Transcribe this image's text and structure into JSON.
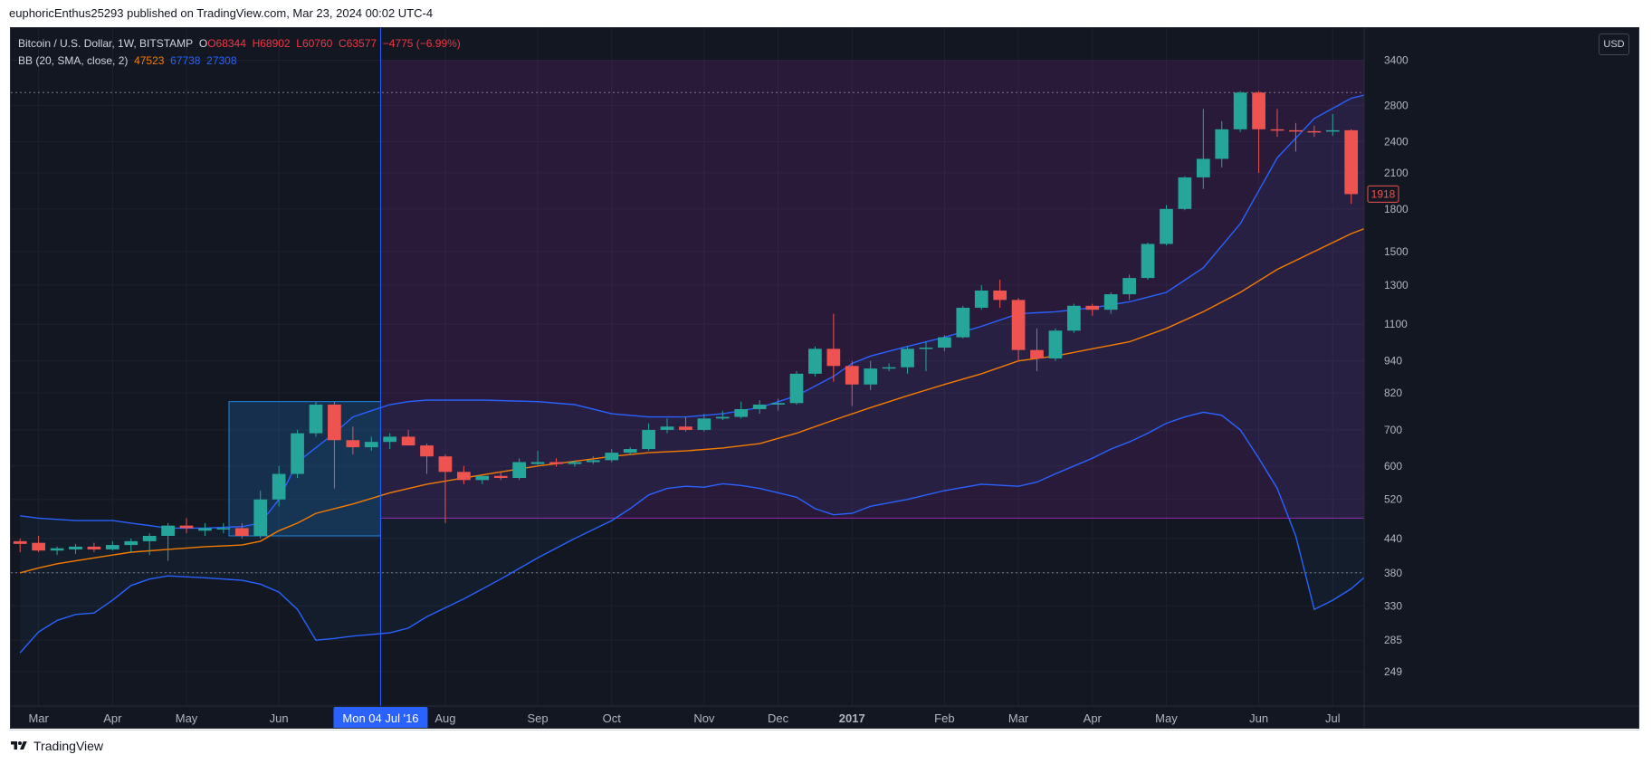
{
  "header": {
    "published_line": "euphoricEnthus25293 published on TradingView.com, Mar 23, 2024 00:02 UTC-4"
  },
  "footer": {
    "brand": "TradingView"
  },
  "legend": {
    "symbol": "Bitcoin / U.S. Dollar, 1W, BITSTAMP",
    "open": "O68344",
    "high": "H68902",
    "low": "L60760",
    "close": "C63577",
    "change": "−4775 (−6.99%)",
    "indicator": "BB (20, SMA, close, 2)",
    "bb_basis": "47523",
    "bb_upper": "67738",
    "bb_lower": "27308"
  },
  "currency_button": "USD",
  "crosshair_date": "Mon 04 Jul '16",
  "last_price_label": "1918",
  "colors": {
    "background": "#131722",
    "up": "#26a69a",
    "down": "#ef5350",
    "bb_upper": "#2962ff",
    "bb_lower": "#2962ff",
    "bb_basis": "#f57c00",
    "highlight_box": "#1e88e5",
    "purple_zone": "#9c27b0"
  },
  "chart_data": {
    "type": "candlestick",
    "price_scale": "log",
    "y_ticks": [
      249,
      285,
      330,
      380,
      440,
      520,
      600,
      700,
      820,
      940,
      1100,
      1300,
      1500,
      1800,
      2100,
      2400,
      2800,
      3400
    ],
    "x_labels": [
      "Mar",
      "Apr",
      "May",
      "Jun",
      "Aug",
      "Sep",
      "Oct",
      "Nov",
      "Dec",
      "2017",
      "Feb",
      "Mar",
      "Apr",
      "May",
      "Jun",
      "Jul"
    ],
    "x_label_positions": [
      1,
      5,
      9,
      14,
      23,
      28,
      32,
      37,
      41,
      45,
      50,
      54,
      58,
      62,
      67,
      71
    ],
    "candles": [
      [
        435,
        440,
        415,
        430
      ],
      [
        432,
        445,
        415,
        418
      ],
      [
        418,
        425,
        410,
        422
      ],
      [
        420,
        430,
        412,
        425
      ],
      [
        425,
        432,
        415,
        420
      ],
      [
        420,
        435,
        418,
        428
      ],
      [
        428,
        440,
        415,
        435
      ],
      [
        435,
        450,
        410,
        445
      ],
      [
        445,
        470,
        400,
        465
      ],
      [
        465,
        480,
        450,
        460
      ],
      [
        455,
        470,
        445,
        460
      ],
      [
        460,
        470,
        450,
        460
      ],
      [
        460,
        470,
        440,
        445
      ],
      [
        445,
        540,
        440,
        520
      ],
      [
        520,
        600,
        505,
        580
      ],
      [
        580,
        700,
        570,
        690
      ],
      [
        690,
        790,
        680,
        780
      ],
      [
        780,
        790,
        545,
        670
      ],
      [
        670,
        710,
        630,
        650
      ],
      [
        650,
        680,
        640,
        665
      ],
      [
        665,
        690,
        645,
        680
      ],
      [
        680,
        700,
        665,
        655
      ],
      [
        655,
        660,
        580,
        625
      ],
      [
        625,
        630,
        470,
        585
      ],
      [
        585,
        600,
        555,
        565
      ],
      [
        565,
        575,
        555,
        575
      ],
      [
        575,
        585,
        565,
        570
      ],
      [
        570,
        620,
        565,
        610
      ],
      [
        605,
        640,
        600,
        610
      ],
      [
        610,
        620,
        598,
        605
      ],
      [
        605,
        615,
        598,
        610
      ],
      [
        610,
        625,
        605,
        615
      ],
      [
        615,
        645,
        610,
        635
      ],
      [
        635,
        650,
        630,
        645
      ],
      [
        645,
        720,
        640,
        700
      ],
      [
        700,
        735,
        690,
        710
      ],
      [
        710,
        740,
        695,
        700
      ],
      [
        700,
        750,
        695,
        735
      ],
      [
        735,
        760,
        730,
        740
      ],
      [
        740,
        790,
        735,
        765
      ],
      [
        765,
        795,
        750,
        780
      ],
      [
        780,
        800,
        760,
        785
      ],
      [
        785,
        900,
        780,
        890
      ],
      [
        890,
        1000,
        880,
        990
      ],
      [
        990,
        1150,
        860,
        920
      ],
      [
        920,
        940,
        775,
        850
      ],
      [
        850,
        940,
        830,
        910
      ],
      [
        910,
        930,
        900,
        915
      ],
      [
        915,
        1000,
        890,
        990
      ],
      [
        990,
        1020,
        900,
        995
      ],
      [
        995,
        1050,
        980,
        1040
      ],
      [
        1040,
        1190,
        1035,
        1180
      ],
      [
        1180,
        1300,
        1170,
        1270
      ],
      [
        1270,
        1330,
        1180,
        1220
      ],
      [
        1220,
        1230,
        940,
        985
      ],
      [
        985,
        1080,
        900,
        950
      ],
      [
        950,
        1080,
        940,
        1070
      ],
      [
        1070,
        1200,
        1060,
        1190
      ],
      [
        1190,
        1200,
        1140,
        1170
      ],
      [
        1170,
        1260,
        1150,
        1250
      ],
      [
        1250,
        1360,
        1220,
        1340
      ],
      [
        1340,
        1560,
        1330,
        1550
      ],
      [
        1550,
        1830,
        1540,
        1800
      ],
      [
        1800,
        2070,
        1790,
        2060
      ],
      [
        2060,
        2760,
        1960,
        2230
      ],
      [
        2230,
        2620,
        2150,
        2530
      ],
      [
        2530,
        2980,
        2500,
        2960
      ],
      [
        2960,
        2980,
        2100,
        2530
      ],
      [
        2530,
        2760,
        2450,
        2520
      ],
      [
        2520,
        2600,
        2300,
        2510
      ],
      [
        2510,
        2570,
        2450,
        2505
      ],
      [
        2505,
        2700,
        2460,
        2520
      ],
      [
        2520,
        2530,
        1840,
        1918
      ]
    ],
    "bb_upper": [
      [
        0,
        485
      ],
      [
        1,
        480
      ],
      [
        3,
        475
      ],
      [
        5,
        475
      ],
      [
        6,
        470
      ],
      [
        7,
        465
      ],
      [
        8,
        460
      ],
      [
        10,
        460
      ],
      [
        12,
        463
      ],
      [
        13,
        470
      ],
      [
        14,
        520
      ],
      [
        15,
        610
      ],
      [
        17,
        690
      ],
      [
        18,
        740
      ],
      [
        19,
        760
      ],
      [
        20,
        780
      ],
      [
        21,
        790
      ],
      [
        22,
        795
      ],
      [
        25,
        795
      ],
      [
        28,
        790
      ],
      [
        30,
        780
      ],
      [
        32,
        750
      ],
      [
        34,
        740
      ],
      [
        36,
        740
      ],
      [
        38,
        750
      ],
      [
        40,
        770
      ],
      [
        42,
        810
      ],
      [
        44,
        880
      ],
      [
        45,
        930
      ],
      [
        46,
        960
      ],
      [
        48,
        1000
      ],
      [
        50,
        1040
      ],
      [
        52,
        1090
      ],
      [
        54,
        1150
      ],
      [
        56,
        1160
      ],
      [
        58,
        1180
      ],
      [
        60,
        1210
      ],
      [
        62,
        1260
      ],
      [
        64,
        1400
      ],
      [
        66,
        1690
      ],
      [
        68,
        2240
      ],
      [
        70,
        2650
      ],
      [
        72,
        2890
      ],
      [
        74,
        3000
      ],
      [
        75,
        3040
      ],
      [
        76,
        3120
      ]
    ],
    "bb_basis": [
      [
        0,
        380
      ],
      [
        1,
        388
      ],
      [
        2,
        395
      ],
      [
        4,
        405
      ],
      [
        6,
        415
      ],
      [
        8,
        420
      ],
      [
        10,
        425
      ],
      [
        12,
        428
      ],
      [
        13,
        435
      ],
      [
        14,
        455
      ],
      [
        15,
        470
      ],
      [
        16,
        490
      ],
      [
        18,
        510
      ],
      [
        20,
        535
      ],
      [
        22,
        555
      ],
      [
        24,
        570
      ],
      [
        26,
        585
      ],
      [
        28,
        600
      ],
      [
        30,
        612
      ],
      [
        32,
        625
      ],
      [
        34,
        635
      ],
      [
        36,
        640
      ],
      [
        38,
        648
      ],
      [
        40,
        660
      ],
      [
        42,
        690
      ],
      [
        44,
        730
      ],
      [
        46,
        770
      ],
      [
        48,
        810
      ],
      [
        50,
        850
      ],
      [
        52,
        890
      ],
      [
        54,
        940
      ],
      [
        56,
        960
      ],
      [
        58,
        990
      ],
      [
        60,
        1020
      ],
      [
        62,
        1080
      ],
      [
        64,
        1160
      ],
      [
        66,
        1260
      ],
      [
        68,
        1390
      ],
      [
        70,
        1500
      ],
      [
        72,
        1620
      ],
      [
        74,
        1720
      ],
      [
        75,
        1760
      ],
      [
        76,
        1800
      ]
    ],
    "bb_lower": [
      [
        0,
        270
      ],
      [
        1,
        295
      ],
      [
        2,
        310
      ],
      [
        3,
        318
      ],
      [
        4,
        320
      ],
      [
        5,
        338
      ],
      [
        6,
        360
      ],
      [
        7,
        370
      ],
      [
        8,
        375
      ],
      [
        10,
        372
      ],
      [
        11,
        370
      ],
      [
        12,
        368
      ],
      [
        13,
        362
      ],
      [
        14,
        350
      ],
      [
        15,
        325
      ],
      [
        16,
        285
      ],
      [
        17,
        287
      ],
      [
        18,
        290
      ],
      [
        19,
        292
      ],
      [
        20,
        294
      ],
      [
        21,
        300
      ],
      [
        22,
        315
      ],
      [
        24,
        340
      ],
      [
        26,
        370
      ],
      [
        28,
        405
      ],
      [
        30,
        440
      ],
      [
        32,
        475
      ],
      [
        33,
        500
      ],
      [
        34,
        530
      ],
      [
        35,
        545
      ],
      [
        36,
        550
      ],
      [
        37,
        548
      ],
      [
        38,
        556
      ],
      [
        39,
        552
      ],
      [
        40,
        545
      ],
      [
        41,
        535
      ],
      [
        42,
        525
      ],
      [
        43,
        500
      ],
      [
        44,
        487
      ],
      [
        45,
        490
      ],
      [
        46,
        505
      ],
      [
        48,
        520
      ],
      [
        50,
        540
      ],
      [
        52,
        555
      ],
      [
        54,
        550
      ],
      [
        55,
        560
      ],
      [
        56,
        580
      ],
      [
        57,
        600
      ],
      [
        58,
        620
      ],
      [
        59,
        645
      ],
      [
        60,
        665
      ],
      [
        61,
        690
      ],
      [
        62,
        720
      ],
      [
        63,
        740
      ],
      [
        64,
        755
      ],
      [
        65,
        745
      ],
      [
        66,
        700
      ],
      [
        67,
        620
      ],
      [
        68,
        545
      ],
      [
        69,
        445
      ],
      [
        70,
        325
      ],
      [
        71,
        338
      ],
      [
        72,
        355
      ],
      [
        73,
        380
      ],
      [
        74,
        415
      ],
      [
        75,
        460
      ],
      [
        76,
        520
      ],
      [
        77,
        555
      ]
    ],
    "highlight_box": {
      "from_bar": 11.3,
      "to_bar": 19.5,
      "low": 445,
      "high": 790
    },
    "purple_zone": {
      "from_bar": 19.5,
      "top": 3400,
      "bottom": 480
    },
    "dotted_levels": [
      2960,
      380
    ],
    "crosshair_bar": 19.5
  }
}
